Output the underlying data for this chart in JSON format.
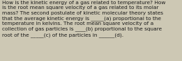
{
  "text": "How is the kinetic energy of a gas related to temperature? How\nis the root mean square velocity of a gas related to its molar\nmass? The second postulate of kinetic molecular theory states\nthat the average kinetic energy is _____(a) proportional to the\ntemperature in kelvins. The root mean square velocity of a\ncollection of gas particles is ____(b) proportional to the square\nroot of the _____(c) of the particles in ______(d).",
  "background_color": "#cdc8b4",
  "text_color": "#1a1a1a",
  "font_size": 5.3,
  "fig_width": 2.61,
  "fig_height": 0.88,
  "dpi": 100
}
